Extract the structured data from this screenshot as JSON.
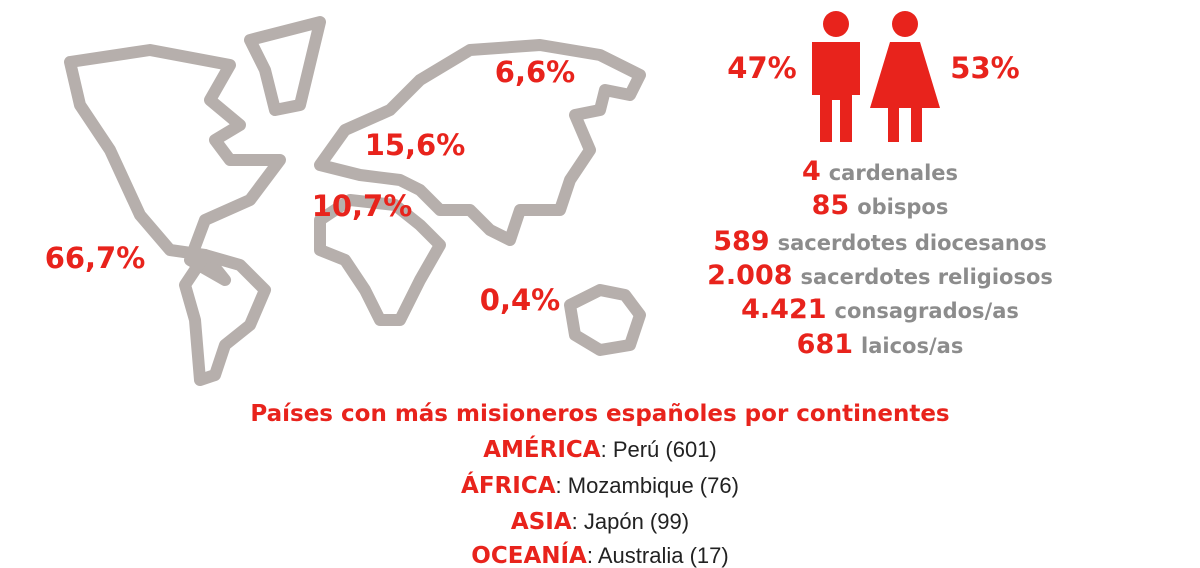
{
  "map_labels": [
    "66,7%",
    "15,6%",
    "10,7%",
    "6,6%",
    "0,4%"
  ],
  "gender": {
    "men": "47%",
    "women": "53%"
  },
  "clergy": [
    {
      "count": "4",
      "label": "cardenales"
    },
    {
      "count": "85",
      "label": "obispos"
    },
    {
      "count": "589",
      "label": "sacerdotes diocesanos"
    },
    {
      "count": "2.008",
      "label": "sacerdotes religiosos"
    },
    {
      "count": "4.421",
      "label": "consagrados/as"
    },
    {
      "count": "681",
      "label": "laicos/as"
    }
  ],
  "countries": {
    "title": "Países con más misioneros españoles por continentes",
    "items": [
      {
        "continent": "AMÉRICA",
        "text": ": Perú (601)"
      },
      {
        "continent": "ÁFRICA",
        "text": ": Mozambique (76)"
      },
      {
        "continent": "ASIA",
        "text": ": Japón (99)"
      },
      {
        "continent": "OCEANÍA",
        "text": ": Australia (17)"
      }
    ]
  }
}
